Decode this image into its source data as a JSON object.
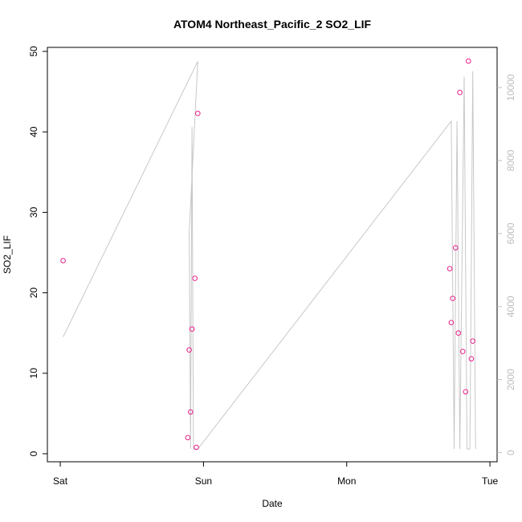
{
  "chart_data": {
    "type": "scatter",
    "title": "ATOM4 Northeast_Pacific_2 SO2_LIF",
    "xlabel": "Date",
    "ylabel": "SO2_LIF",
    "x_tick_labels": [
      "Sat",
      "Sun",
      "Mon",
      "Tue"
    ],
    "x_ticks_days": [
      0,
      1,
      2,
      3
    ],
    "xlim_days": [
      -0.09,
      3.05
    ],
    "ylim": [
      -1,
      50.5
    ],
    "y_ticks": [
      0,
      10,
      20,
      30,
      40,
      50
    ],
    "y_tick_labels": [
      "0",
      "10",
      "20",
      "30",
      "40",
      "50"
    ],
    "y2lim": [
      -250,
      11100
    ],
    "y2_ticks": [
      0,
      2000,
      4000,
      6000,
      8000,
      10000
    ],
    "y2_tick_labels": [
      "0",
      "2000",
      "4000",
      "6000",
      "8000",
      "10000"
    ],
    "grid": false,
    "colors": {
      "points": "#e8208c",
      "line": "#c8c8c8",
      "right_axis": "#bdbdbd"
    },
    "series": [
      {
        "type": "scatter",
        "axis": "left",
        "x_days": [
          0.02,
          0.89,
          0.9,
          0.91,
          0.92,
          0.94,
          0.95,
          0.96,
          2.72,
          2.73,
          2.74,
          2.76,
          2.78,
          2.79,
          2.81,
          2.83,
          2.85,
          2.87,
          2.88
        ],
        "values": [
          24.0,
          2.0,
          12.9,
          5.2,
          15.5,
          21.8,
          0.8,
          42.3,
          23.0,
          16.3,
          19.3,
          25.6,
          15.0,
          44.9,
          12.7,
          7.7,
          48.8,
          11.8,
          14.0
        ]
      },
      {
        "type": "line",
        "axis": "right",
        "x_days": [
          0.02,
          0.96,
          0.9,
          0.91,
          0.92,
          0.93,
          0.94,
          0.95,
          0.96,
          2.73,
          2.75,
          2.77,
          2.79,
          2.82,
          2.84,
          2.86,
          2.88,
          2.9,
          2.9
        ],
        "values": [
          3170,
          10720,
          6040,
          100,
          8920,
          100,
          100,
          100,
          100,
          9080,
          100,
          9080,
          100,
          10300,
          100,
          100,
          10450,
          100,
          100
        ]
      }
    ]
  }
}
